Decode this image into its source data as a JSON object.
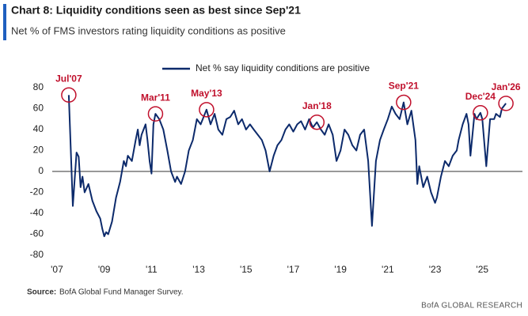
{
  "chart_data": {
    "type": "line",
    "title": "Chart 8: Liquidity conditions seen as best since Sep'21",
    "subtitle": "Net % of FMS investors rating liquidity conditions as positive",
    "x": [
      2007.5,
      2007.67,
      2007.83,
      2007.92,
      2008.0,
      2008.08,
      2008.17,
      2008.33,
      2008.5,
      2008.67,
      2008.83,
      2008.92,
      2009.0,
      2009.08,
      2009.17,
      2009.33,
      2009.5,
      2009.67,
      2009.83,
      2009.92,
      2010.0,
      2010.17,
      2010.33,
      2010.42,
      2010.5,
      2010.58,
      2010.75,
      2010.83,
      2010.92,
      2011.0,
      2011.08,
      2011.17,
      2011.33,
      2011.5,
      2011.67,
      2011.83,
      2012.0,
      2012.08,
      2012.25,
      2012.42,
      2012.58,
      2012.75,
      2012.92,
      2013.08,
      2013.33,
      2013.5,
      2013.67,
      2013.83,
      2014.0,
      2014.17,
      2014.33,
      2014.5,
      2014.67,
      2014.83,
      2015.0,
      2015.17,
      2015.33,
      2015.5,
      2015.67,
      2015.83,
      2016.0,
      2016.17,
      2016.33,
      2016.5,
      2016.67,
      2016.83,
      2017.0,
      2017.17,
      2017.33,
      2017.5,
      2017.67,
      2017.83,
      2018.0,
      2018.17,
      2018.33,
      2018.5,
      2018.67,
      2018.83,
      2019.0,
      2019.17,
      2019.33,
      2019.5,
      2019.67,
      2019.83,
      2020.0,
      2020.17,
      2020.33,
      2020.5,
      2020.67,
      2020.83,
      2021.0,
      2021.17,
      2021.33,
      2021.5,
      2021.67,
      2021.83,
      2022.0,
      2022.17,
      2022.25,
      2022.33,
      2022.5,
      2022.67,
      2022.83,
      2023.0,
      2023.08,
      2023.25,
      2023.42,
      2023.58,
      2023.75,
      2023.92,
      2024.0,
      2024.17,
      2024.33,
      2024.42,
      2024.5,
      2024.67,
      2024.75,
      2024.92,
      2025.0,
      2025.17,
      2025.33,
      2025.5,
      2025.58,
      2025.75,
      2025.83,
      2026.0
    ],
    "series": [
      {
        "name": "Net % say liquidity conditions are positive",
        "color": "#0c2a6b",
        "values": [
          73,
          -33,
          18,
          14,
          -15,
          -5,
          -20,
          -12,
          -28,
          -38,
          -45,
          -55,
          -62,
          -58,
          -60,
          -48,
          -25,
          -10,
          10,
          5,
          15,
          10,
          30,
          40,
          25,
          35,
          45,
          30,
          10,
          -2,
          45,
          55,
          50,
          40,
          20,
          0,
          -10,
          -5,
          -12,
          0,
          20,
          30,
          50,
          45,
          59,
          45,
          55,
          40,
          35,
          50,
          52,
          58,
          45,
          50,
          40,
          45,
          40,
          35,
          30,
          20,
          0,
          15,
          25,
          30,
          40,
          45,
          38,
          45,
          48,
          40,
          50,
          42,
          47,
          40,
          35,
          45,
          35,
          10,
          20,
          40,
          35,
          25,
          20,
          35,
          40,
          10,
          -52,
          10,
          30,
          40,
          50,
          62,
          55,
          50,
          66,
          45,
          58,
          30,
          -12,
          5,
          -15,
          -5,
          -20,
          -30,
          -25,
          -5,
          10,
          5,
          15,
          20,
          30,
          45,
          55,
          45,
          15,
          55,
          50,
          56,
          50,
          5,
          50,
          50,
          55,
          52,
          60,
          65
        ]
      }
    ],
    "xlim": [
      2006.8,
      2026.7
    ],
    "xticks": [
      {
        "value": 2007,
        "label": "'07"
      },
      {
        "value": 2009,
        "label": "'09"
      },
      {
        "value": 2011,
        "label": "'11"
      },
      {
        "value": 2013,
        "label": "'13"
      },
      {
        "value": 2015,
        "label": "'15"
      },
      {
        "value": 2017,
        "label": "'17"
      },
      {
        "value": 2019,
        "label": "'19"
      },
      {
        "value": 2021,
        "label": "'21"
      },
      {
        "value": 2023,
        "label": "'23"
      },
      {
        "value": 2025,
        "label": "'25"
      }
    ],
    "ylim": [
      -80,
      80
    ],
    "yticks": [
      -80,
      -60,
      -40,
      -20,
      0,
      20,
      40,
      60,
      80
    ],
    "zero_line": true,
    "annotations": [
      {
        "text": "Jul'07",
        "x": 2007.5,
        "y": 73
      },
      {
        "text": "Mar'11",
        "x": 2011.17,
        "y": 55
      },
      {
        "text": "May'13",
        "x": 2013.33,
        "y": 59
      },
      {
        "text": "Jan'18",
        "x": 2018.0,
        "y": 47
      },
      {
        "text": "Sep'21",
        "x": 2021.67,
        "y": 66
      },
      {
        "text": "Dec'24",
        "x": 2024.92,
        "y": 56
      },
      {
        "text": "Jan'26",
        "x": 2026.0,
        "y": 65
      }
    ],
    "annotation_color": "#c0102c",
    "source_label": "Source:",
    "source": "BofA Global Fund Manager Survey.",
    "credit": "BofA GLOBAL RESEARCH"
  }
}
